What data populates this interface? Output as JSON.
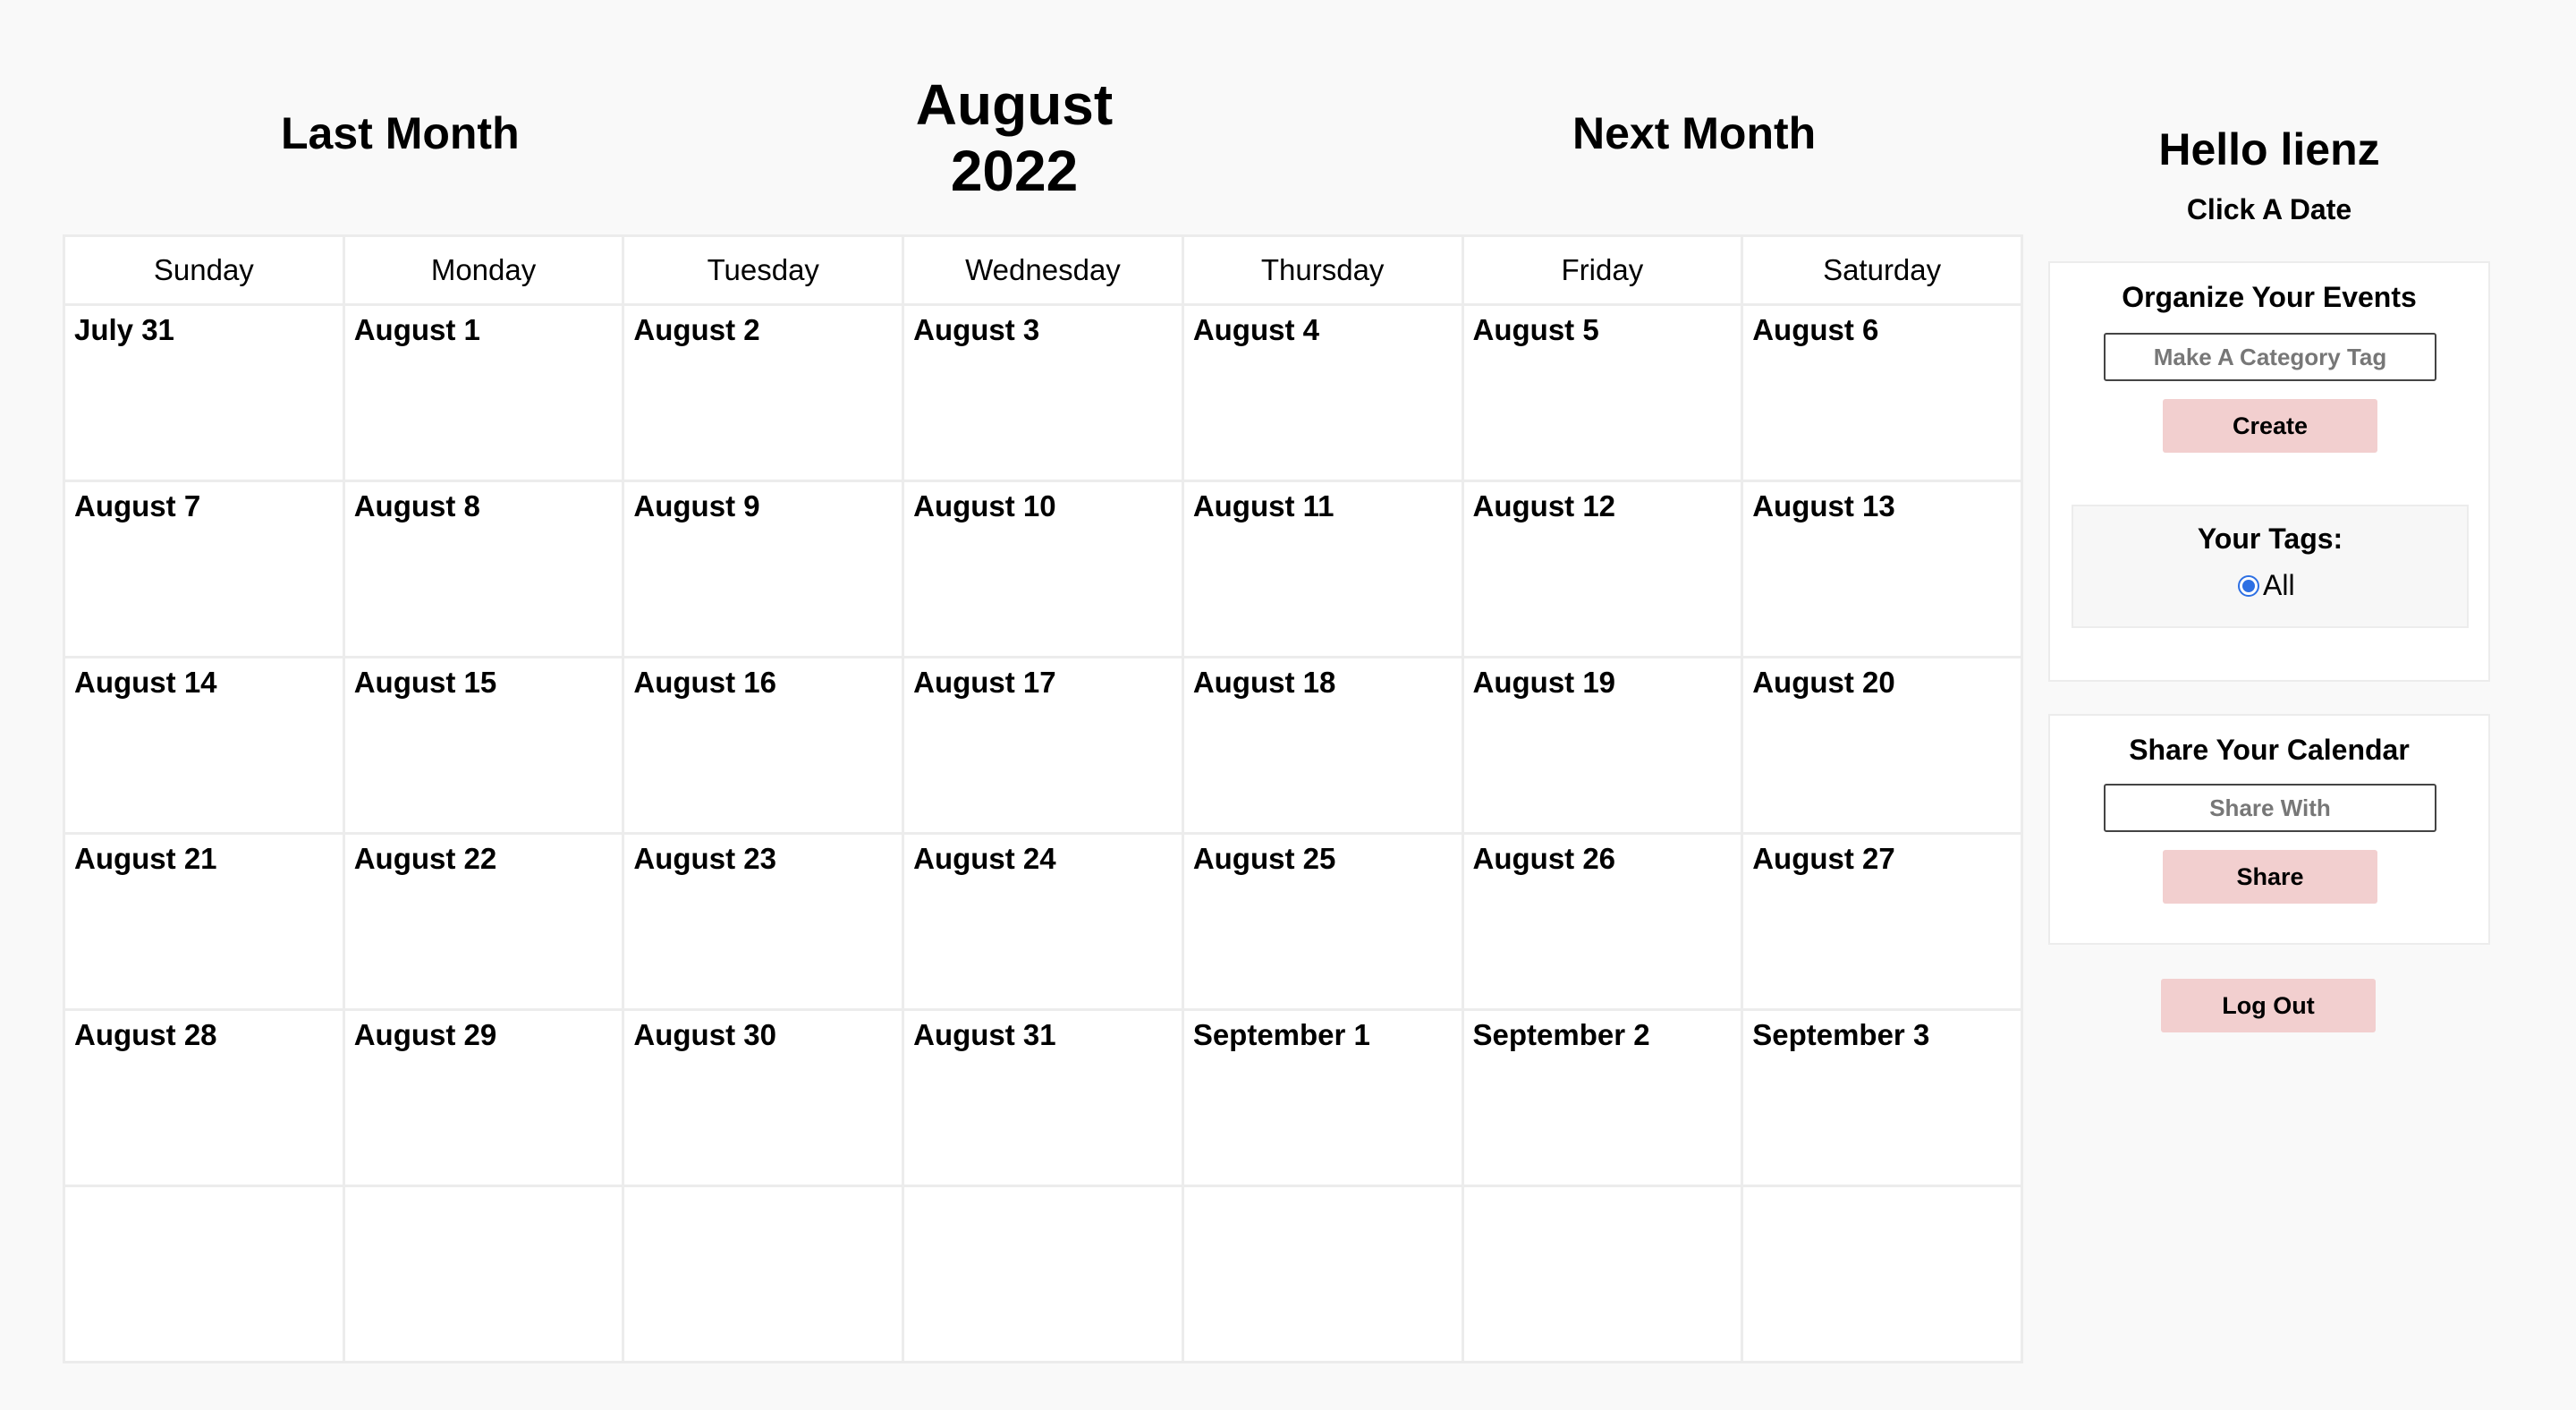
{
  "nav": {
    "prev_label": "Last Month",
    "month_title": "August 2022",
    "next_label": "Next Month"
  },
  "calendar": {
    "weekdays": [
      "Sunday",
      "Monday",
      "Tuesday",
      "Wednesday",
      "Thursday",
      "Friday",
      "Saturday"
    ],
    "weeks": [
      [
        "July 31",
        "August 1",
        "August 2",
        "August 3",
        "August 4",
        "August 5",
        "August 6"
      ],
      [
        "August 7",
        "August 8",
        "August 9",
        "August 10",
        "August 11",
        "August 12",
        "August 13"
      ],
      [
        "August 14",
        "August 15",
        "August 16",
        "August 17",
        "August 18",
        "August 19",
        "August 20"
      ],
      [
        "August 21",
        "August 22",
        "August 23",
        "August 24",
        "August 25",
        "August 26",
        "August 27"
      ],
      [
        "August 28",
        "August 29",
        "August 30",
        "August 31",
        "September 1",
        "September 2",
        "September 3"
      ],
      [
        "",
        "",
        "",
        "",
        "",
        "",
        ""
      ]
    ]
  },
  "sidebar": {
    "greeting": "Hello lienz",
    "instruction": "Click A Date",
    "organize": {
      "title": "Organize Your Events",
      "tag_placeholder": "Make A Category Tag",
      "create_label": "Create",
      "tags_title": "Your Tags:",
      "tags": [
        {
          "label": "All",
          "selected": true
        }
      ]
    },
    "share": {
      "title": "Share Your Calendar",
      "share_placeholder": "Share With",
      "share_label": "Share"
    },
    "logout_label": "Log Out"
  },
  "colors": {
    "button_bg": "#f2cfcf",
    "radio_accent": "#2d6fe3",
    "page_bg": "#f9f9f9",
    "grid_border": "#ececec"
  }
}
